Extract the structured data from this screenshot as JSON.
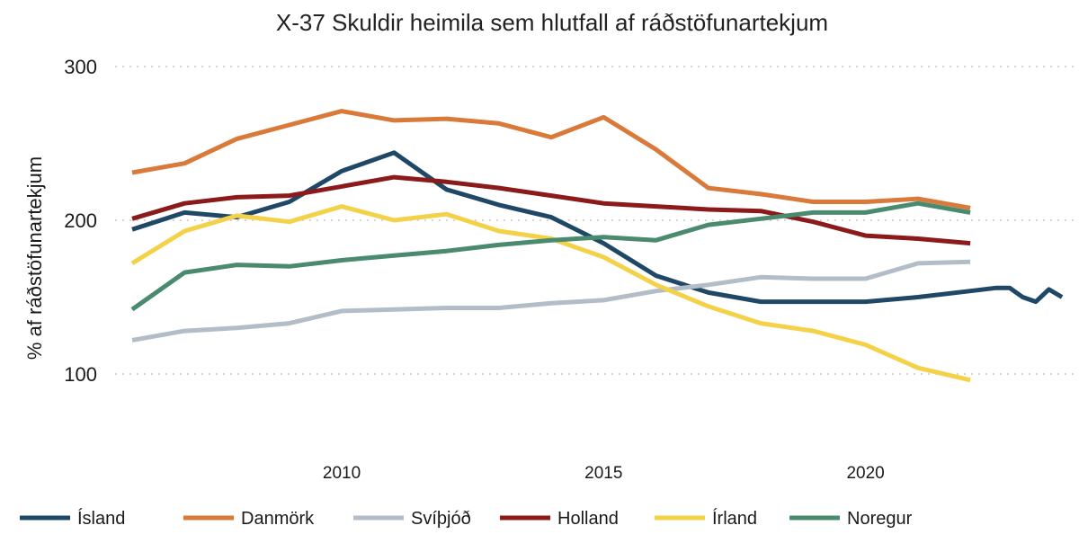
{
  "chart_data": {
    "type": "line",
    "title": "X-37 Skuldir heimila sem hlutfall af ráðstöfunartekjum",
    "xlabel": "",
    "ylabel": "% af ráðstöfunartekjum",
    "xlim": [
      2006,
      2023.8
    ],
    "ylim": [
      60,
      300
    ],
    "yticks": [
      100,
      200,
      300
    ],
    "xticks": [
      2010,
      2015,
      2020
    ],
    "grid": "horizontal dotted",
    "legend": "bottom",
    "series": [
      {
        "name": "Ísland",
        "color": "#1f4866",
        "x": [
          2006,
          2007,
          2008,
          2009,
          2010,
          2011,
          2012,
          2013,
          2014,
          2015,
          2016,
          2017,
          2018,
          2019,
          2020,
          2021,
          2022,
          2022.5,
          2022.75,
          2023,
          2023.25,
          2023.5,
          2023.75
        ],
        "values": [
          194,
          205,
          202,
          212,
          232,
          244,
          220,
          210,
          202,
          185,
          164,
          153,
          147,
          147,
          147,
          150,
          154,
          156,
          156,
          150,
          147,
          155,
          150
        ]
      },
      {
        "name": "Danmörk",
        "color": "#d97a3a",
        "x": [
          2006,
          2007,
          2008,
          2009,
          2010,
          2011,
          2012,
          2013,
          2014,
          2015,
          2016,
          2017,
          2018,
          2019,
          2020,
          2021,
          2022
        ],
        "values": [
          231,
          237,
          253,
          262,
          271,
          265,
          266,
          263,
          254,
          267,
          246,
          221,
          217,
          212,
          212,
          214,
          208
        ]
      },
      {
        "name": "Svíþjóð",
        "color": "#b3bdc8",
        "x": [
          2006,
          2007,
          2008,
          2009,
          2010,
          2011,
          2012,
          2013,
          2014,
          2015,
          2016,
          2017,
          2018,
          2019,
          2020,
          2021,
          2022
        ],
        "values": [
          122,
          128,
          130,
          133,
          141,
          142,
          143,
          143,
          146,
          148,
          154,
          158,
          163,
          162,
          162,
          172,
          173
        ]
      },
      {
        "name": "Holland",
        "color": "#8b1a1a",
        "x": [
          2006,
          2007,
          2008,
          2009,
          2010,
          2011,
          2012,
          2013,
          2014,
          2015,
          2016,
          2017,
          2018,
          2019,
          2020,
          2021,
          2022
        ],
        "values": [
          201,
          211,
          215,
          216,
          222,
          228,
          225,
          221,
          216,
          211,
          209,
          207,
          206,
          199,
          190,
          188,
          185
        ]
      },
      {
        "name": "Írland",
        "color": "#f3d24a",
        "x": [
          2006,
          2007,
          2008,
          2009,
          2010,
          2011,
          2012,
          2013,
          2014,
          2015,
          2016,
          2017,
          2018,
          2019,
          2020,
          2021,
          2022
        ],
        "values": [
          172,
          193,
          203,
          199,
          209,
          200,
          204,
          193,
          188,
          176,
          158,
          144,
          133,
          128,
          119,
          104,
          96
        ]
      },
      {
        "name": "Noregur",
        "color": "#4a8a6e",
        "x": [
          2006,
          2007,
          2008,
          2009,
          2010,
          2011,
          2012,
          2013,
          2014,
          2015,
          2016,
          2017,
          2018,
          2019,
          2020,
          2021,
          2022
        ],
        "values": [
          142,
          166,
          171,
          170,
          174,
          177,
          180,
          184,
          187,
          189,
          187,
          197,
          201,
          205,
          205,
          211,
          205
        ]
      }
    ]
  }
}
